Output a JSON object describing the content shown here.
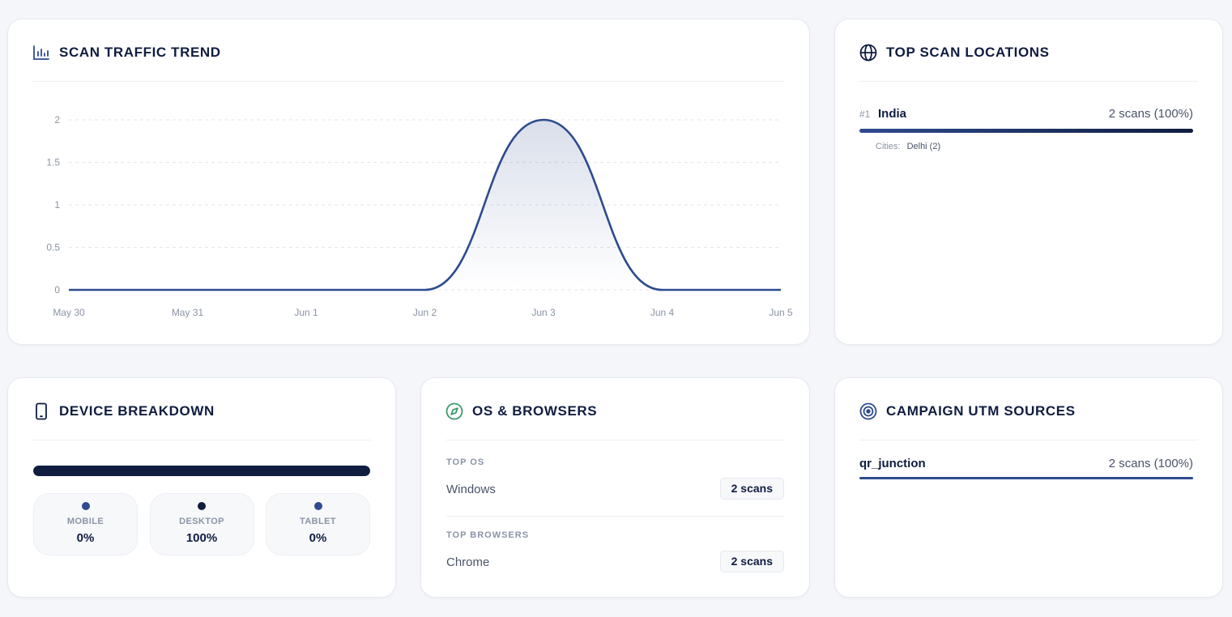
{
  "traffic_card": {
    "title": "SCAN TRAFFIC TREND",
    "icon": "bar-chart-icon"
  },
  "chart_data": {
    "type": "area",
    "x": [
      "May 30",
      "May 31",
      "Jun 1",
      "Jun 2",
      "Jun 3",
      "Jun 4",
      "Jun 5"
    ],
    "values": [
      0,
      0,
      0,
      0,
      2,
      0,
      0
    ],
    "yticks": [
      "0",
      "0.5",
      "1",
      "1.5",
      "2"
    ],
    "ylim": [
      0,
      2
    ],
    "grid": true,
    "line_color": "#2d4b8e"
  },
  "locations_card": {
    "title": "TOP SCAN LOCATIONS",
    "icon": "globe-icon",
    "items": [
      {
        "rank": "#1",
        "country": "India",
        "count": "2 scans (100%)",
        "share": 1.0,
        "cities_label": "Cities:",
        "cities": "Delhi (2)"
      }
    ]
  },
  "device_card": {
    "title": "DEVICE BREAKDOWN",
    "icon": "smartphone-icon",
    "bar_share": 1.0,
    "tiles": [
      {
        "label": "MOBILE",
        "value": "0%",
        "color": "#2d4b8e"
      },
      {
        "label": "DESKTOP",
        "value": "100%",
        "color": "#0f1d40"
      },
      {
        "label": "TABLET",
        "value": "0%",
        "color": "#2d4b8e"
      }
    ]
  },
  "os_card": {
    "title": "OS & BROWSERS",
    "icon": "compass-icon",
    "top_os_label": "TOP OS",
    "os": {
      "name": "Windows",
      "count": "2 scans"
    },
    "top_browsers_label": "TOP BROWSERS",
    "browser": {
      "name": "Chrome",
      "count": "2 scans"
    }
  },
  "utm_card": {
    "title": "CAMPAIGN UTM SOURCES",
    "icon": "target-icon",
    "items": [
      {
        "name": "qr_junction",
        "count": "2 scans (100%)",
        "share": 1.0
      }
    ]
  },
  "colors": {
    "navy": "#0f1d40",
    "accent": "#2d4b8e",
    "muted": "#8a93a6",
    "green": "#3a9a6a"
  }
}
